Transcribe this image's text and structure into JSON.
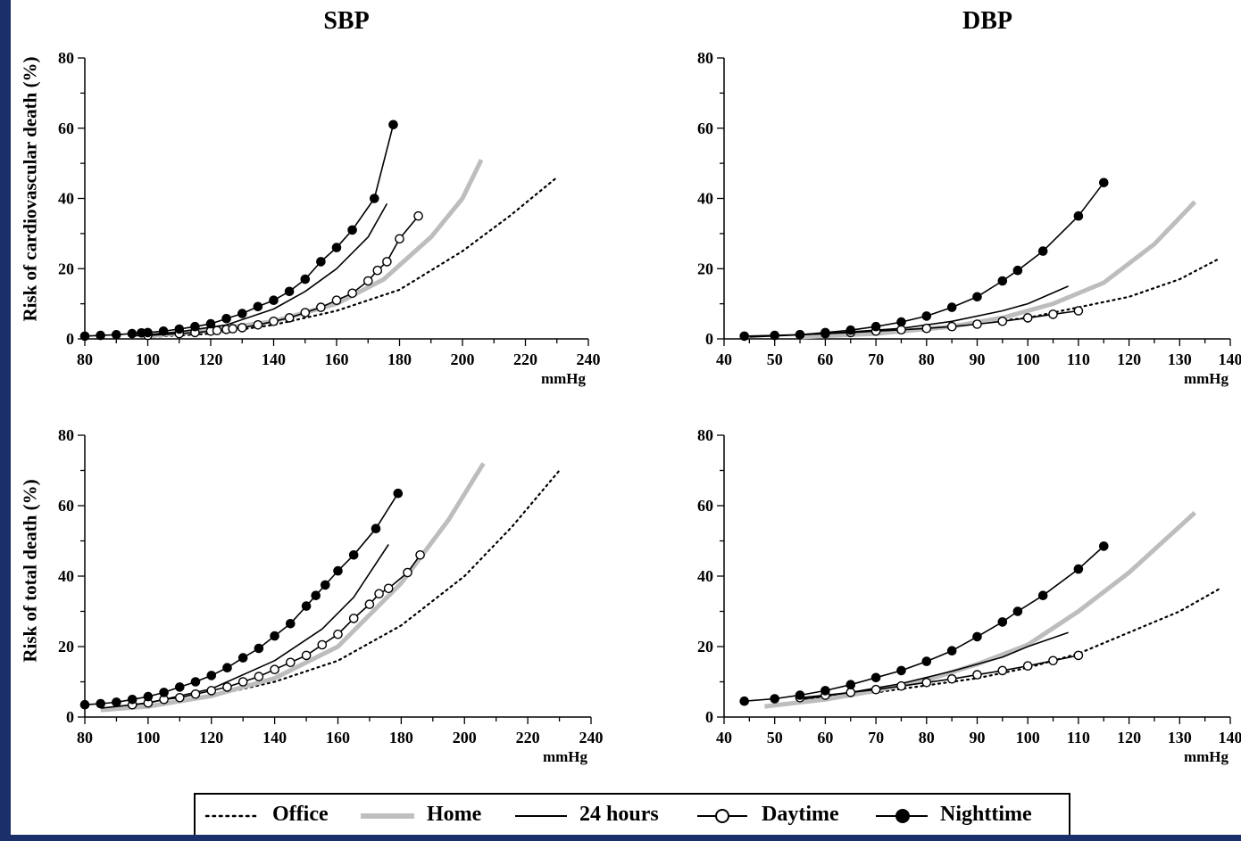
{
  "headers": {
    "sbp": "SBP",
    "dbp": "DBP"
  },
  "y_titles": {
    "top": "Risk of cardiovascular death (%)",
    "bottom": "Risk of total death (%)"
  },
  "legend": [
    {
      "key": "office",
      "label": "Office"
    },
    {
      "key": "home",
      "label": "Home"
    },
    {
      "key": "h24",
      "label": "24 hours"
    },
    {
      "key": "daytime",
      "label": "Daytime"
    },
    {
      "key": "nighttime",
      "label": "Nighttime"
    }
  ],
  "chart_data": [
    {
      "id": "sbp_cv",
      "type": "line",
      "title": "SBP",
      "xlabel": "mmHg",
      "ylabel": "Risk of cardiovascular death (%)",
      "xlim": [
        80,
        240
      ],
      "ylim": [
        0,
        80
      ],
      "xticks": [
        80,
        100,
        120,
        140,
        160,
        180,
        200,
        220,
        240
      ],
      "yticks": [
        0,
        20,
        40,
        60,
        80
      ],
      "grid": false,
      "series": [
        {
          "name": "Office",
          "style": "dotted",
          "x": [
            100,
            120,
            140,
            160,
            180,
            200,
            215,
            230
          ],
          "y": [
            0.5,
            1.5,
            4,
            8,
            14,
            25,
            35,
            46
          ]
        },
        {
          "name": "Home",
          "style": "gray",
          "x": [
            100,
            120,
            140,
            160,
            175,
            190,
            200,
            206
          ],
          "y": [
            0.8,
            2.5,
            5,
            10,
            17,
            29,
            40,
            51
          ]
        },
        {
          "name": "24 hours",
          "style": "thin",
          "x": [
            95,
            110,
            125,
            140,
            150,
            160,
            170,
            176
          ],
          "y": [
            0.8,
            2,
            4,
            8.5,
            13.5,
            20,
            29,
            38.5
          ]
        },
        {
          "name": "Daytime",
          "style": "open",
          "x": [
            100,
            110,
            115,
            120,
            122,
            125,
            127,
            130,
            135,
            140,
            145,
            150,
            155,
            160,
            165,
            170,
            173,
            176,
            180,
            186
          ],
          "y": [
            1,
            1.5,
            1.8,
            2.2,
            2.4,
            2.7,
            2.9,
            3.2,
            4,
            5,
            6,
            7.5,
            9,
            11,
            13,
            16.5,
            19.5,
            22,
            28.5,
            35
          ]
        },
        {
          "name": "Nighttime",
          "style": "filled",
          "x": [
            80,
            85,
            90,
            95,
            98,
            100,
            105,
            110,
            115,
            120,
            125,
            130,
            135,
            140,
            145,
            150,
            155,
            160,
            165,
            172,
            178
          ],
          "y": [
            0.8,
            1,
            1.2,
            1.5,
            1.7,
            1.8,
            2.2,
            2.8,
            3.5,
            4.3,
            5.8,
            7.2,
            9.2,
            11,
            13.5,
            17,
            22,
            26,
            31,
            40,
            61
          ]
        }
      ]
    },
    {
      "id": "dbp_cv",
      "type": "line",
      "title": "DBP",
      "xlabel": "mmHg",
      "ylabel": "",
      "xlim": [
        40,
        140
      ],
      "ylim": [
        0,
        80
      ],
      "xticks": [
        40,
        50,
        60,
        70,
        80,
        90,
        100,
        110,
        120,
        130,
        140
      ],
      "yticks": [
        0,
        20,
        40,
        60,
        80
      ],
      "grid": false,
      "series": [
        {
          "name": "Office",
          "style": "dotted",
          "x": [
            60,
            80,
            100,
            110,
            120,
            130,
            138
          ],
          "y": [
            1,
            3,
            6,
            9,
            12,
            17,
            23
          ]
        },
        {
          "name": "Home",
          "style": "gray",
          "x": [
            55,
            70,
            85,
            95,
            105,
            115,
            125,
            133
          ],
          "y": [
            0.5,
            1.5,
            3.5,
            6,
            10,
            16,
            27,
            39
          ]
        },
        {
          "name": "24 hours",
          "style": "thin",
          "x": [
            45,
            60,
            75,
            85,
            95,
            100,
            108
          ],
          "y": [
            0.5,
            1.5,
            3,
            5,
            8,
            10,
            15
          ]
        },
        {
          "name": "Daytime",
          "style": "open",
          "x": [
            55,
            60,
            65,
            70,
            75,
            80,
            85,
            90,
            95,
            100,
            105,
            110
          ],
          "y": [
            1.2,
            1.5,
            1.8,
            2.2,
            2.6,
            3,
            3.5,
            4.2,
            5,
            6,
            7,
            8
          ]
        },
        {
          "name": "Nighttime",
          "style": "filled",
          "x": [
            44,
            50,
            55,
            60,
            65,
            70,
            75,
            80,
            85,
            90,
            95,
            98,
            103,
            110,
            115
          ],
          "y": [
            0.8,
            1,
            1.2,
            1.8,
            2.5,
            3.5,
            4.8,
            6.5,
            9,
            12,
            16.5,
            19.5,
            25,
            35,
            44.5
          ]
        }
      ]
    },
    {
      "id": "sbp_total",
      "type": "line",
      "title": "",
      "xlabel": "mmHg",
      "ylabel": "Risk of total death (%)",
      "xlim": [
        80,
        240
      ],
      "ylim": [
        0,
        80
      ],
      "xticks": [
        80,
        100,
        120,
        140,
        160,
        180,
        200,
        220,
        240
      ],
      "yticks": [
        0,
        20,
        40,
        60,
        80
      ],
      "grid": false,
      "series": [
        {
          "name": "Office",
          "style": "dotted",
          "x": [
            100,
            120,
            140,
            160,
            180,
            200,
            215,
            230
          ],
          "y": [
            3,
            6,
            10,
            16,
            26,
            40,
            54,
            70
          ]
        },
        {
          "name": "Home",
          "style": "gray",
          "x": [
            85,
            100,
            120,
            140,
            160,
            180,
            195,
            206
          ],
          "y": [
            2,
            3,
            6,
            11,
            20,
            38,
            56,
            72
          ]
        },
        {
          "name": "24 hours",
          "style": "thin",
          "x": [
            85,
            100,
            120,
            140,
            155,
            165,
            176
          ],
          "y": [
            2.5,
            4,
            8,
            16,
            25,
            34,
            49
          ]
        },
        {
          "name": "Daytime",
          "style": "open",
          "x": [
            95,
            100,
            105,
            110,
            115,
            120,
            125,
            130,
            135,
            140,
            145,
            150,
            155,
            160,
            165,
            170,
            173,
            176,
            182,
            186
          ],
          "y": [
            3.5,
            4,
            5,
            5.5,
            6.5,
            7.5,
            8.5,
            10,
            11.5,
            13.5,
            15.5,
            17.5,
            20.5,
            23.5,
            28,
            32,
            35,
            36.5,
            41,
            46
          ]
        },
        {
          "name": "Nighttime",
          "style": "filled",
          "x": [
            80,
            85,
            90,
            95,
            100,
            105,
            110,
            115,
            120,
            125,
            130,
            135,
            140,
            145,
            150,
            153,
            156,
            160,
            165,
            172,
            179
          ],
          "y": [
            3.5,
            3.8,
            4.2,
            5,
            5.8,
            7,
            8.5,
            10,
            11.8,
            14,
            16.8,
            19.5,
            23,
            26.5,
            31.5,
            34.5,
            37.5,
            41.5,
            46,
            53.5,
            63.5
          ]
        }
      ]
    },
    {
      "id": "dbp_total",
      "type": "line",
      "title": "",
      "xlabel": "mmHg",
      "ylabel": "",
      "xlim": [
        40,
        140
      ],
      "ylim": [
        0,
        80
      ],
      "xticks": [
        40,
        50,
        60,
        70,
        80,
        90,
        100,
        110,
        120,
        130,
        140
      ],
      "yticks": [
        0,
        20,
        40,
        60,
        80
      ],
      "grid": false,
      "series": [
        {
          "name": "Office",
          "style": "dotted",
          "x": [
            55,
            70,
            80,
            90,
            100,
            110,
            120,
            130,
            138
          ],
          "y": [
            5,
            7,
            9,
            11,
            14,
            18,
            24,
            30,
            36.5
          ]
        },
        {
          "name": "Home",
          "style": "gray",
          "x": [
            48,
            60,
            70,
            80,
            90,
            100,
            110,
            120,
            133
          ],
          "y": [
            3,
            5,
            7.5,
            10.5,
            15,
            20.5,
            30,
            41,
            58
          ]
        },
        {
          "name": "24 hours",
          "style": "thin",
          "x": [
            55,
            65,
            75,
            85,
            95,
            100,
            108
          ],
          "y": [
            5,
            7,
            9.5,
            13,
            17,
            20,
            24
          ]
        },
        {
          "name": "Daytime",
          "style": "open",
          "x": [
            55,
            60,
            65,
            70,
            75,
            80,
            85,
            90,
            95,
            100,
            105,
            110
          ],
          "y": [
            5.5,
            6.2,
            7,
            7.8,
            8.8,
            9.8,
            10.8,
            12,
            13.2,
            14.5,
            16,
            17.5
          ]
        },
        {
          "name": "Nighttime",
          "style": "filled",
          "x": [
            44,
            50,
            55,
            60,
            65,
            70,
            75,
            80,
            85,
            90,
            95,
            98,
            103,
            110,
            115
          ],
          "y": [
            4.5,
            5.2,
            6.2,
            7.5,
            9.2,
            11.2,
            13.2,
            15.8,
            18.8,
            22.8,
            27,
            30,
            34.5,
            42,
            48.5
          ]
        }
      ]
    }
  ]
}
